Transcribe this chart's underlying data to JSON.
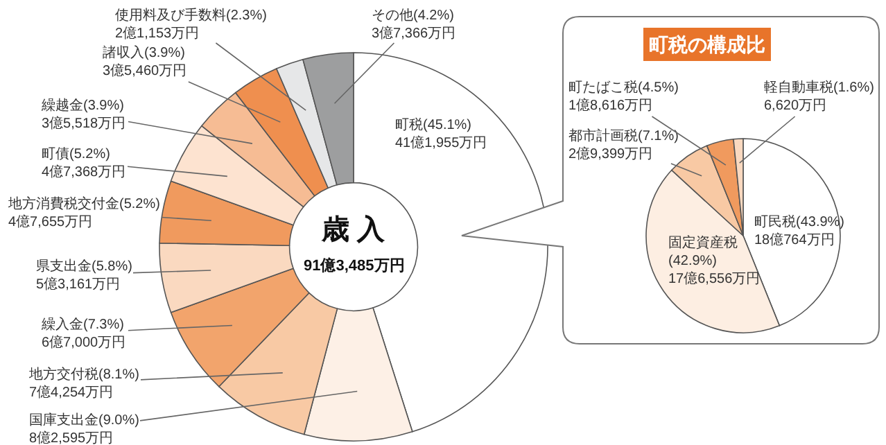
{
  "chart_data": [
    {
      "type": "donut",
      "title": "歳 入",
      "subtitle": "91億3,485万円",
      "categories": [
        "町税",
        "国庫支出金",
        "地方交付税",
        "繰入金",
        "県支出金",
        "地方消費税交付金",
        "町債",
        "繰越金",
        "諸収入",
        "使用料及び手数料",
        "その他"
      ],
      "values": [
        45.1,
        9.0,
        8.1,
        7.3,
        5.8,
        5.2,
        5.2,
        3.9,
        3.9,
        2.3,
        4.2
      ],
      "value_labels": [
        "(45.1%)\n41億1,955万円",
        "(9.0%)\n8億2,595万円",
        "(8.1%)\n7億4,254万円",
        "(7.3%)\n6億7,000万円",
        "(5.8%)\n5億3,161万円",
        "(5.2%)\n4億7,655万円",
        "(5.2%)\n4億7,368万円",
        "(3.9%)\n3億5,518万円",
        "(3.9%)\n3億5,460万円",
        "(2.3%)\n2億1,153万円",
        "(4.2%)\n3億7,366万円"
      ],
      "colors": [
        "#ffffff",
        "#fdf0e6",
        "#f8c9a4",
        "#f2a46c",
        "#fad9c0",
        "#f09a5e",
        "#fde3d0",
        "#f6bc94",
        "#ef8f4f",
        "#e6e7e8",
        "#9d9e9f"
      ]
    },
    {
      "type": "pie",
      "title": "町税の構成比",
      "categories": [
        "町民税",
        "固定資産税",
        "都市計画税",
        "町たばこ税",
        "軽自動車税"
      ],
      "values": [
        43.9,
        42.9,
        7.1,
        4.5,
        1.6
      ],
      "value_labels": [
        "(43.9%)\n18億764万円",
        "\n(42.9%)\n17億6,556万円",
        "(7.1%)\n2億9,399万円",
        "(4.5%)\n1億8,616万円",
        "(1.6%)\n6,620万円"
      ],
      "colors": [
        "#ffffff",
        "#fdeee2",
        "#f8c9a4",
        "#f09a5e",
        "#fad9c0"
      ]
    }
  ]
}
